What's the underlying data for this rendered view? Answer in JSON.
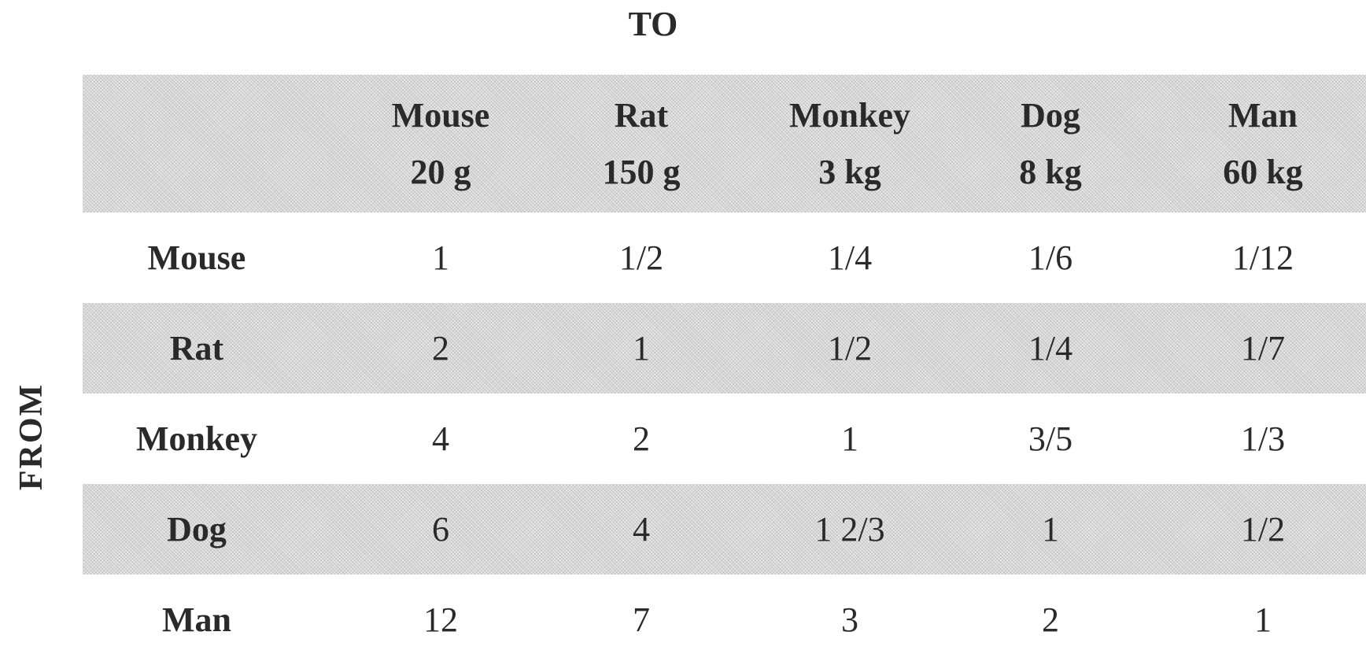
{
  "to_label": "TO",
  "from_label": "FROM",
  "columns": [
    {
      "species": "Mouse",
      "weight": "20 g"
    },
    {
      "species": "Rat",
      "weight": "150 g"
    },
    {
      "species": "Monkey",
      "weight": "3 kg"
    },
    {
      "species": "Dog",
      "weight": "8 kg"
    },
    {
      "species": "Man",
      "weight": "60 kg"
    }
  ],
  "rows": [
    {
      "label": "Mouse",
      "values": [
        "1",
        "1/2",
        "1/4",
        "1/6",
        "1/12"
      ]
    },
    {
      "label": "Rat",
      "values": [
        "2",
        "1",
        "1/2",
        "1/4",
        "1/7"
      ]
    },
    {
      "label": "Monkey",
      "values": [
        "4",
        "2",
        "1",
        "3/5",
        "1/3"
      ]
    },
    {
      "label": "Dog",
      "values": [
        "6",
        "4",
        "1 2/3",
        "1",
        "1/2"
      ]
    },
    {
      "label": "Man",
      "values": [
        "12",
        "7",
        "3",
        "2",
        "1"
      ]
    }
  ],
  "colors": {
    "shaded_band": "#d6d6d6",
    "text": "#2a2a2a"
  }
}
